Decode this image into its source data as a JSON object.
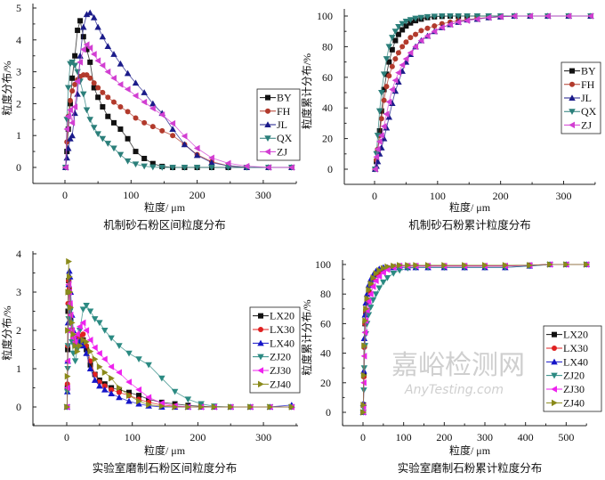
{
  "watermark": {
    "main": "嘉峪检测网",
    "sub": "AnyTesting.com"
  },
  "chart_data": [
    {
      "type": "line",
      "title": "机制砂石粉区间粒度分布",
      "xlabel": "粒度/ μm",
      "ylabel": "粒度分布/%",
      "xlim": [
        -50,
        350
      ],
      "ylim": [
        -0.5,
        5.2
      ],
      "xticks": [
        "0",
        "100",
        "200",
        "300"
      ],
      "yticks": [
        "0",
        "1",
        "2",
        "3",
        "4",
        "5"
      ],
      "legend_position": "right",
      "grid": false,
      "x": [
        1,
        3,
        5,
        8,
        11,
        15,
        19,
        23,
        28,
        33,
        38,
        44,
        50,
        57,
        65,
        74,
        84,
        95,
        107,
        120,
        133,
        147,
        163,
        181,
        200,
        222,
        247,
        275,
        308,
        343
      ],
      "series": [
        {
          "name": "BY",
          "color": "#111111",
          "marker": "square",
          "values": [
            0,
            0.5,
            1.2,
            2.0,
            2.8,
            3.5,
            4.3,
            4.6,
            4.1,
            3.7,
            3.3,
            2.5,
            2.2,
            1.9,
            1.6,
            1.4,
            1.2,
            0.9,
            0.5,
            0.28,
            0.12,
            0.03,
            0,
            0,
            0,
            0,
            0,
            0,
            0,
            0
          ]
        },
        {
          "name": "FH",
          "color": "#b23a2c",
          "marker": "circle",
          "values": [
            0,
            0.8,
            1.6,
            2.1,
            2.4,
            2.6,
            2.75,
            2.85,
            2.9,
            2.9,
            2.8,
            2.65,
            2.5,
            2.35,
            2.2,
            2.05,
            1.9,
            1.75,
            1.55,
            1.4,
            1.28,
            1.15,
            1.0,
            0.72,
            0.4,
            0.18,
            0.05,
            0,
            0,
            0
          ]
        },
        {
          "name": "JL",
          "color": "#1b1b8a",
          "marker": "triangle-up",
          "values": [
            0,
            0.3,
            0.6,
            0.9,
            1.0,
            1.7,
            2.3,
            3.5,
            4.4,
            4.8,
            4.85,
            4.7,
            4.4,
            4.1,
            3.8,
            3.55,
            3.25,
            2.95,
            2.65,
            2.35,
            2.0,
            1.7,
            1.2,
            0.72,
            0.38,
            0.15,
            0.05,
            0,
            0,
            0
          ]
        },
        {
          "name": "QX",
          "color": "#2b7f7a",
          "marker": "triangle-down",
          "values": [
            0,
            1.5,
            2.5,
            3.25,
            3.3,
            3.2,
            3.0,
            2.7,
            2.3,
            1.8,
            1.5,
            1.25,
            1.05,
            0.9,
            0.75,
            0.6,
            0.4,
            0.2,
            0.1,
            0.04,
            0.01,
            0,
            0,
            0,
            0,
            0,
            0,
            0,
            0,
            0
          ]
        },
        {
          "name": "ZJ",
          "color": "#d23fd2",
          "marker": "triangle-left",
          "values": [
            0,
            1.2,
            1.6,
            1.8,
            1.4,
            1.9,
            2.7,
            3.3,
            3.7,
            3.85,
            3.75,
            3.55,
            3.35,
            3.2,
            3.0,
            2.8,
            2.6,
            2.45,
            2.25,
            2.05,
            1.85,
            1.65,
            1.38,
            0.98,
            0.6,
            0.3,
            0.13,
            0.04,
            0,
            0
          ]
        }
      ]
    },
    {
      "type": "line",
      "title": "机制砂石粉累计粒度分布",
      "xlabel": "粒度/ μm",
      "ylabel": "粒度累计分布/%",
      "xlim": [
        -50,
        350
      ],
      "ylim": [
        -10,
        104
      ],
      "xticks": [
        "0",
        "100",
        "200",
        "300"
      ],
      "yticks": [
        "0",
        "20",
        "40",
        "60",
        "80",
        "100"
      ],
      "legend_position": "right",
      "grid": false,
      "x": [
        1,
        3,
        5,
        8,
        11,
        15,
        19,
        23,
        28,
        33,
        38,
        44,
        50,
        57,
        65,
        74,
        84,
        95,
        107,
        120,
        133,
        147,
        163,
        181,
        200,
        222,
        247,
        275,
        308,
        343
      ],
      "series": [
        {
          "name": "BY",
          "color": "#111111",
          "marker": "square",
          "values": [
            0,
            5,
            12,
            25,
            38,
            52,
            62,
            70,
            78,
            84,
            88,
            91,
            93.5,
            95.5,
            97,
            98,
            99,
            99.5,
            99.8,
            100,
            100,
            100,
            100,
            100,
            100,
            100,
            100,
            100,
            100,
            100
          ]
        },
        {
          "name": "FH",
          "color": "#b23a2c",
          "marker": "circle",
          "values": [
            0,
            6,
            13,
            22,
            33,
            45,
            54,
            61,
            67,
            72,
            76,
            80,
            83,
            86,
            88,
            90.5,
            92,
            93.5,
            95,
            96,
            97,
            97.5,
            98.5,
            99,
            99.5,
            100,
            100,
            100,
            100,
            100
          ]
        },
        {
          "name": "JL",
          "color": "#1b1b8a",
          "marker": "triangle-up",
          "values": [
            0,
            2,
            5,
            10,
            14,
            20,
            27,
            34,
            43,
            51,
            57,
            64,
            70,
            75,
            80,
            84,
            87,
            90,
            92.5,
            94.5,
            96,
            97.5,
            98,
            99,
            99.5,
            100,
            100,
            100,
            100,
            100
          ]
        },
        {
          "name": "QX",
          "color": "#2b7f7a",
          "marker": "triangle-down",
          "values": [
            0,
            10,
            22,
            38,
            50,
            62,
            72,
            80,
            86,
            90,
            93,
            95,
            96.5,
            97.5,
            98.5,
            99,
            99.5,
            99.8,
            100,
            100,
            100,
            100,
            100,
            100,
            100,
            100,
            100,
            100,
            100,
            100
          ]
        },
        {
          "name": "ZJ",
          "color": "#d23fd2",
          "marker": "triangle-left",
          "values": [
            0,
            8,
            13,
            18,
            22,
            28,
            36,
            44,
            52,
            58,
            63,
            68,
            72,
            76,
            80,
            84,
            87,
            90,
            92.5,
            94.5,
            96,
            97,
            98,
            99,
            99.5,
            100,
            100,
            100,
            100,
            100
          ]
        }
      ]
    },
    {
      "type": "line",
      "title": "实验室磨制石粉区间粒度分布",
      "xlabel": "粒度/ μm",
      "ylabel": "粒度分布/%",
      "xlim": [
        -50,
        350
      ],
      "ylim": [
        -0.5,
        4
      ],
      "xticks": [
        "0",
        "100",
        "200",
        "300"
      ],
      "yticks": [
        "0",
        "1",
        "2",
        "3",
        "4"
      ],
      "legend_position": "right",
      "grid": false,
      "x": [
        0.5,
        1,
        1.5,
        2,
        3,
        4,
        5,
        6,
        8,
        10,
        13,
        16,
        20,
        25,
        30,
        36,
        43,
        50,
        58,
        68,
        80,
        95,
        110,
        125,
        145,
        165,
        185,
        205,
        225,
        250,
        280,
        310,
        343
      ],
      "series": [
        {
          "name": "LX20",
          "color": "#111111",
          "marker": "square",
          "values": [
            0,
            0.5,
            1.5,
            2.5,
            3.3,
            3.0,
            2.6,
            2.3,
            2.0,
            1.8,
            1.7,
            1.75,
            1.8,
            1.75,
            1.5,
            1.1,
            0.85,
            0.7,
            0.6,
            0.5,
            0.45,
            0.38,
            0.3,
            0.2,
            0.12,
            0.08,
            0.04,
            0.02,
            0,
            0,
            0,
            0,
            0
          ]
        },
        {
          "name": "LX30",
          "color": "#e02020",
          "marker": "circle",
          "values": [
            0,
            0.6,
            1.6,
            2.7,
            3.3,
            3.1,
            2.7,
            2.4,
            2.0,
            1.8,
            1.7,
            1.8,
            1.85,
            1.9,
            1.6,
            1.2,
            0.85,
            0.65,
            0.55,
            0.45,
            0.38,
            0.3,
            0.2,
            0.12,
            0.05,
            0.02,
            0,
            0,
            0,
            0,
            0,
            0,
            0
          ]
        },
        {
          "name": "LX40",
          "color": "#1515c8",
          "marker": "triangle-up",
          "values": [
            0,
            0.4,
            1.2,
            2.2,
            3.2,
            3.55,
            3.4,
            3.0,
            2.4,
            2.0,
            1.8,
            1.7,
            1.7,
            1.6,
            1.4,
            1.0,
            0.7,
            0.55,
            0.45,
            0.35,
            0.25,
            0.15,
            0.08,
            0.03,
            0,
            0,
            0,
            0,
            0,
            0,
            0,
            0,
            0.05
          ]
        },
        {
          "name": "ZJ20",
          "color": "#2b8a82",
          "marker": "triangle-down",
          "values": [
            0,
            0.4,
            1.0,
            1.6,
            2.3,
            2.6,
            2.5,
            2.2,
            1.7,
            1.4,
            1.2,
            1.5,
            2.0,
            2.55,
            2.65,
            2.5,
            2.3,
            2.2,
            2.0,
            1.8,
            1.6,
            1.4,
            1.25,
            1.1,
            0.75,
            0.4,
            0.2,
            0.08,
            0.02,
            0,
            0,
            0,
            0
          ]
        },
        {
          "name": "ZJ30",
          "color": "#ee22ee",
          "marker": "triangle-left",
          "values": [
            0,
            0.5,
            1.2,
            2.0,
            3.2,
            3.0,
            2.7,
            2.4,
            2.0,
            1.8,
            1.7,
            1.9,
            2.1,
            2.2,
            2.0,
            1.75,
            1.55,
            1.4,
            1.25,
            1.05,
            0.9,
            0.65,
            0.45,
            0.25,
            0.1,
            0.03,
            0,
            0,
            0,
            0,
            0,
            0,
            0
          ]
        },
        {
          "name": "ZJ40",
          "color": "#8a8a1a",
          "marker": "triangle-right",
          "values": [
            0,
            0.8,
            2.0,
            3.0,
            3.8,
            3.4,
            3.0,
            2.6,
            2.2,
            1.9,
            1.6,
            1.45,
            1.6,
            1.75,
            1.7,
            1.45,
            1.25,
            1.05,
            0.9,
            0.75,
            0.5,
            0.3,
            0.15,
            0.06,
            0.02,
            0,
            0,
            0,
            0,
            0,
            0,
            0,
            0
          ]
        }
      ]
    },
    {
      "type": "line",
      "title": "实验室磨制石粉累计粒度分布",
      "xlabel": "粒度/ μm",
      "ylabel": "粒度累计分布/%",
      "xlim": [
        -50,
        550
      ],
      "ylim": [
        -10,
        104
      ],
      "xticks": [
        "0",
        "100",
        "200",
        "300",
        "400",
        "500"
      ],
      "yticks": [
        "0",
        "20",
        "40",
        "60",
        "80",
        "100"
      ],
      "legend_position": "right",
      "grid": false,
      "x": [
        0.5,
        1,
        2,
        3,
        5,
        7,
        10,
        14,
        19,
        25,
        32,
        40,
        50,
        60,
        75,
        90,
        110,
        130,
        160,
        200,
        250,
        300,
        350,
        410,
        460,
        500,
        550
      ],
      "series": [
        {
          "name": "LX20",
          "color": "#111111",
          "marker": "square",
          "values": [
            0,
            5,
            25,
            45,
            60,
            68,
            75,
            81,
            86,
            90,
            93,
            95,
            96.5,
            97.5,
            98.5,
            99,
            99,
            99,
            99,
            99,
            99,
            99,
            99,
            99.5,
            100,
            100,
            100
          ]
        },
        {
          "name": "LX30",
          "color": "#e02020",
          "marker": "circle",
          "values": [
            0,
            5,
            24,
            44,
            60,
            68,
            75,
            81,
            86,
            90,
            93,
            95,
            97,
            98,
            98.5,
            99,
            99,
            99,
            99,
            99,
            99,
            99,
            99,
            99.5,
            100,
            100,
            100
          ]
        },
        {
          "name": "LX40",
          "color": "#1515c8",
          "marker": "triangle-up",
          "values": [
            0,
            6,
            28,
            50,
            66,
            74,
            80,
            86,
            90,
            93,
            95.5,
            97,
            98,
            98,
            98,
            98,
            98,
            98,
            98,
            98,
            98,
            98,
            98,
            99,
            100,
            100,
            100
          ]
        },
        {
          "name": "ZJ20",
          "color": "#2b8a82",
          "marker": "triangle-down",
          "values": [
            0,
            3,
            15,
            30,
            45,
            53,
            60,
            66,
            71,
            76,
            80,
            84,
            88,
            91,
            94,
            96,
            97.5,
            98,
            98,
            98,
            98,
            98,
            98,
            99,
            100,
            100,
            100
          ]
        },
        {
          "name": "ZJ30",
          "color": "#ee22ee",
          "marker": "triangle-left",
          "values": [
            0,
            4,
            20,
            38,
            54,
            62,
            69,
            75,
            80,
            85,
            89,
            92,
            94.5,
            96.5,
            98,
            99,
            99,
            99,
            99,
            99,
            99,
            99,
            99,
            99.5,
            100,
            100,
            100
          ]
        },
        {
          "name": "ZJ40",
          "color": "#8a8a1a",
          "marker": "triangle-right",
          "values": [
            0,
            5,
            25,
            45,
            62,
            70,
            77,
            83,
            87,
            91,
            94,
            96,
            97.5,
            98.5,
            99,
            99.5,
            99.5,
            99.5,
            99.5,
            99.5,
            99.5,
            99.5,
            99.5,
            99.5,
            100,
            100,
            100
          ]
        }
      ]
    }
  ]
}
